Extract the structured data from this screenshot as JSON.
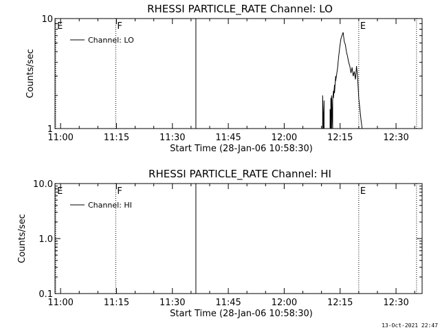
{
  "footer": {
    "timestamp": "13-Oct-2021 22:47"
  },
  "chart_data": [
    {
      "type": "line",
      "title": "RHESSI PARTICLE_RATE Channel: LO",
      "xlabel": "Start Time (28-Jan-06 10:58:30)",
      "ylabel": "Counts/sec",
      "y_scale": "log",
      "ylim": [
        1,
        10
      ],
      "y_ticks": [
        "1",
        "10"
      ],
      "x_ticks": [
        "11:00",
        "11:15",
        "11:30",
        "11:45",
        "12:00",
        "12:15",
        "12:30"
      ],
      "x_tick_minutes": [
        0,
        15,
        30,
        45,
        60,
        75,
        90
      ],
      "xlim_minutes": [
        -1.5,
        97
      ],
      "legend": "top-left",
      "series": [
        {
          "name": "Channel: LO",
          "x_minutes": [
            70.3,
            70.3,
            70.5,
            70.5,
            70.7,
            70.7,
            72.3,
            72.3,
            72.5,
            72.5,
            72.7,
            72.7,
            73.0,
            73.0,
            73.2,
            73.2,
            73.5,
            73.5,
            73.8,
            73.8,
            74.0,
            74.3,
            74.6,
            74.9,
            75.2,
            75.5,
            75.8,
            76.1,
            76.4,
            76.7,
            77.0,
            77.3,
            77.6,
            77.9,
            78.2,
            78.5,
            78.8,
            79.1,
            79.4,
            79.7,
            80.0,
            80.3,
            80.6,
            80.9,
            81.2,
            81.5,
            82.0
          ],
          "values": [
            1,
            2.0,
            1,
            1,
            1.8,
            1,
            1,
            1.5,
            1,
            1.9,
            1,
            2.0,
            1,
            1.8,
            2.2,
            1.9,
            2.5,
            2.1,
            3.0,
            2.7,
            3.0,
            3.5,
            4.5,
            5.5,
            6.5,
            7.0,
            7.5,
            6.2,
            5.8,
            5.0,
            4.5,
            4.0,
            3.7,
            3.2,
            3.6,
            3.0,
            3.3,
            2.8,
            3.7,
            2.9,
            1.9,
            1.5,
            1.2,
            1,
            1,
            1,
            1
          ]
        }
      ],
      "markers": [
        {
          "label": "E",
          "minute": -1.3,
          "style": "dotted"
        },
        {
          "label": "F",
          "minute": 14.8,
          "style": "dotted"
        },
        {
          "label": "",
          "minute": 36.3,
          "style": "solid"
        },
        {
          "label": "E",
          "minute": 80.0,
          "style": "dotted"
        },
        {
          "label": "",
          "minute": 95.5,
          "style": "dotted"
        }
      ]
    },
    {
      "type": "line",
      "title": "RHESSI PARTICLE_RATE Channel: HI",
      "xlabel": "Start Time (28-Jan-06 10:58:30)",
      "ylabel": "Counts/sec",
      "y_scale": "log",
      "ylim": [
        0.1,
        10
      ],
      "y_ticks": [
        "0.1",
        "1.0",
        "10.0"
      ],
      "x_ticks": [
        "11:00",
        "11:15",
        "11:30",
        "11:45",
        "12:00",
        "12:15",
        "12:30"
      ],
      "x_tick_minutes": [
        0,
        15,
        30,
        45,
        60,
        75,
        90
      ],
      "xlim_minutes": [
        -1.5,
        97
      ],
      "legend": "top-left",
      "series": [
        {
          "name": "Channel: HI",
          "x_minutes": [],
          "values": []
        }
      ],
      "markers": [
        {
          "label": "E",
          "minute": -1.3,
          "style": "dotted"
        },
        {
          "label": "F",
          "minute": 14.8,
          "style": "dotted"
        },
        {
          "label": "",
          "minute": 36.3,
          "style": "solid"
        },
        {
          "label": "E",
          "minute": 80.0,
          "style": "dotted"
        },
        {
          "label": "",
          "minute": 95.5,
          "style": "dotted"
        }
      ]
    }
  ]
}
